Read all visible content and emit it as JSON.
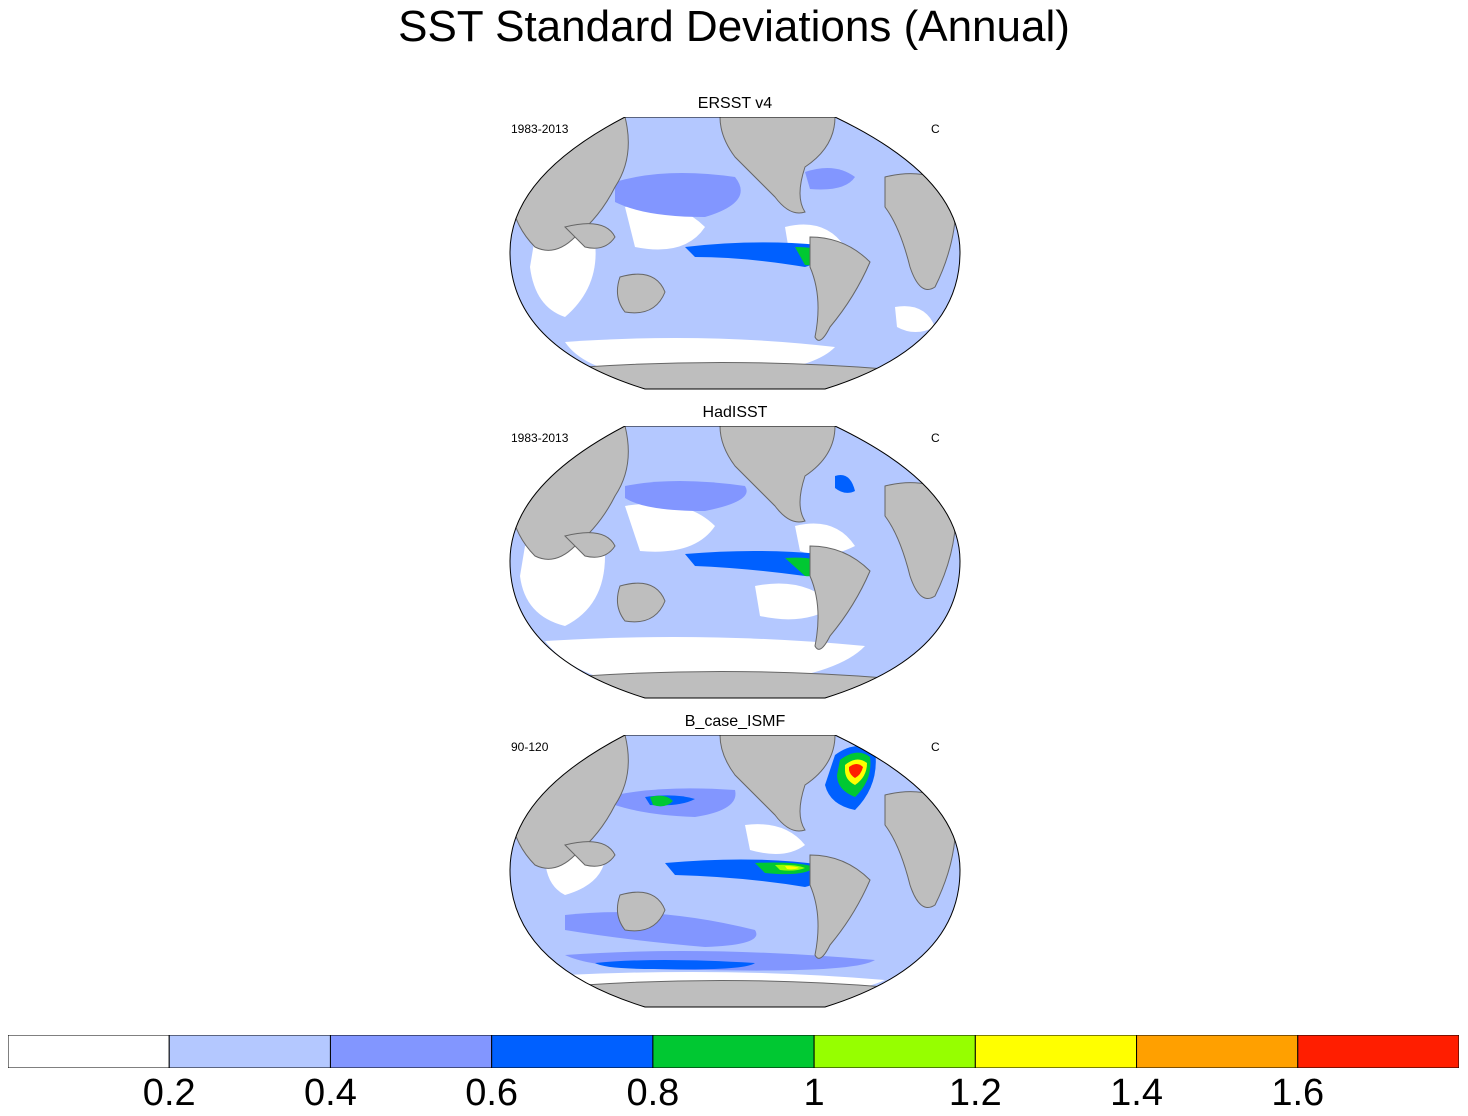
{
  "title": "SST Standard Deviations (Annual)",
  "panels": [
    {
      "title": "ERSST v4",
      "period": "1983-2013",
      "units": "C"
    },
    {
      "title": "HadISST",
      "period": "1983-2013",
      "units": "C"
    },
    {
      "title": "B_case_ISMF",
      "period": "90-120",
      "units": "C"
    }
  ],
  "colorbar": {
    "colors": [
      "#ffffff",
      "#b4c8ff",
      "#8296ff",
      "#0060ff",
      "#00c832",
      "#96ff00",
      "#ffff00",
      "#ffa000",
      "#ff1e00"
    ],
    "labels": [
      "0.2",
      "0.4",
      "0.6",
      "0.8",
      "1",
      "1.2",
      "1.4",
      "1.6"
    ]
  },
  "map_colors": {
    "land": "#bebebe",
    "coast": "#666666",
    "ocean_base": "#b4c8ff"
  }
}
